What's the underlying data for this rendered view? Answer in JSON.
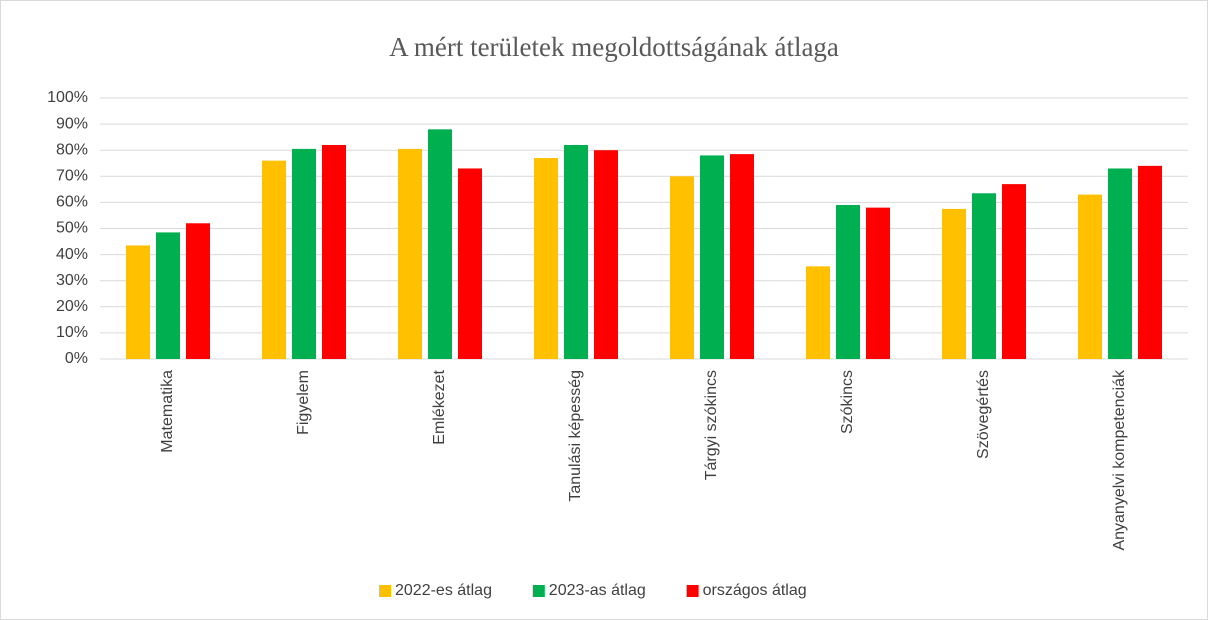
{
  "chart_data": {
    "type": "bar",
    "title": "A mért területek megoldottságának átlaga",
    "categories": [
      "Matematika",
      "Figyelem",
      "Emlékezet",
      "Tanulási képesség",
      "Tárgyi szókincs",
      "Szókincs",
      "Szövegértés",
      "Anyanyelvi kompetenciák"
    ],
    "series": [
      {
        "name": "2022-es átlag",
        "color": "#ffc000",
        "values": [
          43.5,
          76,
          80.5,
          77,
          70,
          35.5,
          57.5,
          63
        ]
      },
      {
        "name": "2023-as átlag",
        "color": "#00b050",
        "values": [
          48.5,
          80.5,
          88,
          82,
          78,
          59,
          63.5,
          73
        ]
      },
      {
        "name": "országos átlag",
        "color": "#ff0000",
        "values": [
          52,
          82,
          73,
          80,
          78.5,
          58,
          67,
          74
        ]
      }
    ],
    "ylim": [
      0,
      100
    ],
    "yticks": [
      {
        "value": 0,
        "label": "0%"
      },
      {
        "value": 10,
        "label": "10%"
      },
      {
        "value": 20,
        "label": "20%"
      },
      {
        "value": 30,
        "label": "30%"
      },
      {
        "value": 40,
        "label": "40%"
      },
      {
        "value": 50,
        "label": "50%"
      },
      {
        "value": 60,
        "label": "60%"
      },
      {
        "value": 70,
        "label": "70%"
      },
      {
        "value": 80,
        "label": "80%"
      },
      {
        "value": 90,
        "label": "90%"
      },
      {
        "value": 100,
        "label": "100%"
      }
    ],
    "grid": true,
    "legend": "bottom"
  }
}
